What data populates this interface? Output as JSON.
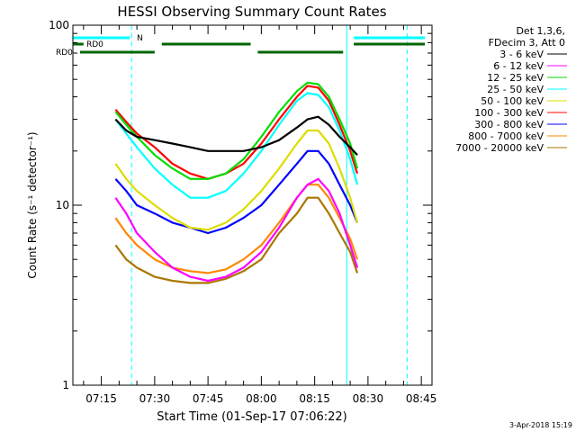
{
  "chart_data": {
    "type": "line",
    "title": "HESSI Observing Summary Count Rates",
    "xlabel": "Start Time (01-Sep-17 07:06:22)",
    "ylabel": "Count Rate (s⁻¹ detector⁻¹)",
    "y_scale": "log",
    "ylim": [
      1,
      100
    ],
    "xlim": [
      "07:07:00",
      "08:48:00"
    ],
    "x_ticks": [
      "07:15",
      "07:30",
      "07:45",
      "08:00",
      "08:15",
      "08:30",
      "08:45"
    ],
    "y_ticks": [
      "1",
      "10",
      "100"
    ],
    "x": [
      "07:19",
      "07:22",
      "07:25",
      "07:30",
      "07:35",
      "07:40",
      "07:45",
      "07:50",
      "07:55",
      "08:00",
      "08:05",
      "08:10",
      "08:13",
      "08:16",
      "08:19",
      "08:22",
      "08:25",
      "08:27"
    ],
    "series": [
      {
        "name": "3 - 6 keV",
        "color": "#000000",
        "values": [
          30,
          26,
          24,
          23,
          22,
          21,
          20,
          20,
          20,
          21,
          23,
          27,
          30,
          31,
          28,
          24,
          21,
          19
        ]
      },
      {
        "name": "6 - 12 keV",
        "color": "#ff00ff",
        "values": [
          11,
          9,
          7,
          5.5,
          4.5,
          4.0,
          3.8,
          4.0,
          4.5,
          5.5,
          7.5,
          11,
          13,
          14,
          12,
          9,
          6,
          4.5
        ]
      },
      {
        "name": "12 - 25 keV",
        "color": "#00dd00",
        "values": [
          33,
          28,
          24,
          19,
          16,
          14,
          14,
          15,
          18,
          24,
          33,
          43,
          48,
          47,
          40,
          30,
          22,
          16
        ]
      },
      {
        "name": "25 - 50 keV",
        "color": "#00ffff",
        "values": [
          30,
          25,
          21,
          16,
          13,
          11,
          11,
          12,
          15,
          20,
          28,
          38,
          42,
          41,
          35,
          26,
          18,
          13
        ]
      },
      {
        "name": "50 - 100 keV",
        "color": "#dddd00",
        "values": [
          17,
          14,
          12,
          10,
          8.5,
          7.5,
          7.3,
          8,
          9.5,
          12,
          16,
          22,
          26,
          26,
          22,
          16,
          11,
          8
        ]
      },
      {
        "name": "100 - 300 keV",
        "color": "#ff0000",
        "values": [
          34,
          29,
          25,
          21,
          17,
          15,
          14,
          15,
          17,
          22,
          30,
          40,
          46,
          45,
          38,
          28,
          20,
          15
        ]
      },
      {
        "name": "300 - 800 keV",
        "color": "#0000ff",
        "values": [
          14,
          12,
          10,
          9,
          8,
          7.5,
          7,
          7.5,
          8.5,
          10,
          13,
          17,
          20,
          20,
          17,
          13,
          10,
          8
        ]
      },
      {
        "name": "800 - 7000 keV",
        "color": "#ff8800",
        "values": [
          8.5,
          7,
          6,
          5,
          4.5,
          4.3,
          4.2,
          4.4,
          5,
          6,
          8,
          11,
          13,
          13,
          11,
          8.5,
          6.5,
          5
        ]
      },
      {
        "name": "7000 - 20000 keV",
        "color": "#aa7700",
        "values": [
          6,
          5,
          4.5,
          4,
          3.8,
          3.7,
          3.7,
          3.9,
          4.3,
          5,
          7,
          9,
          11,
          11,
          9,
          7,
          5.5,
          4.2
        ]
      }
    ],
    "flags": [
      {
        "label": "N",
        "color": "#00ffff",
        "intervals": [
          [
            "07:07:00",
            "07:23:00"
          ],
          [
            "08:26:00",
            "08:46:00"
          ]
        ]
      },
      {
        "label": "RD0",
        "color": "#006600",
        "intervals": [
          [
            "07:07:00",
            "07:08:00"
          ],
          [
            "07:08:00",
            "07:10:00"
          ],
          [
            "07:32:00",
            "07:57:00"
          ],
          [
            "08:26:00",
            "08:46:00"
          ]
        ]
      },
      {
        "label": "RD0",
        "color": "#006600",
        "intervals": [
          [
            "07:09:00",
            "07:30:00"
          ],
          [
            "07:59:00",
            "08:23:00"
          ]
        ]
      }
    ],
    "vlines_dashed": [
      "07:23:30",
      "08:41:00"
    ],
    "vlines_solid": [
      "07:07:00",
      "08:24:00"
    ],
    "legend_placement": "right",
    "legend_header": [
      "Det 1,3,6,",
      "FDecim 3, Att 0"
    ],
    "footer": "3-Apr-2018 15:19"
  }
}
